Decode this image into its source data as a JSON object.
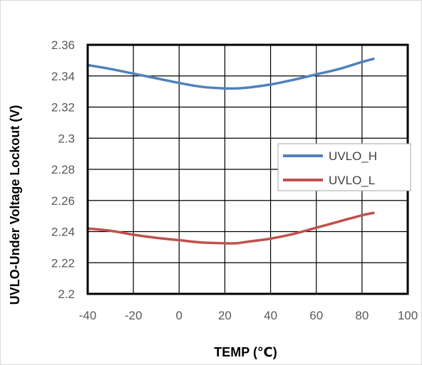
{
  "chart_data": {
    "type": "line",
    "title": "",
    "xlabel": "TEMP (℃)",
    "ylabel": "UVLO-Under Voltage Lockout (V)",
    "xlim": [
      -40,
      100
    ],
    "ylim": [
      2.2,
      2.36
    ],
    "xticks": [
      -40,
      -20,
      0,
      20,
      40,
      60,
      80,
      100
    ],
    "yticks": [
      2.2,
      2.22,
      2.24,
      2.26,
      2.28,
      2.3,
      2.32,
      2.34,
      2.36
    ],
    "xtick_labels": [
      "-40",
      "-20",
      "0",
      "20",
      "40",
      "60",
      "80",
      "100"
    ],
    "ytick_labels": [
      "2.2",
      "2.22",
      "2.24",
      "2.26",
      "2.28",
      "2.3",
      "2.32",
      "2.34",
      "2.36"
    ],
    "grid": true,
    "legend_position": "right-middle",
    "series": [
      {
        "name": "UVLO_H",
        "color": "#4F81BD",
        "x": [
          -40,
          -30,
          -20,
          -10,
          0,
          10,
          20,
          25,
          30,
          40,
          50,
          60,
          70,
          80,
          85
        ],
        "y": [
          2.347,
          2.3445,
          2.3415,
          2.3385,
          2.3355,
          2.333,
          2.332,
          2.332,
          2.3325,
          2.3345,
          2.3375,
          2.341,
          2.3445,
          2.349,
          2.351
        ]
      },
      {
        "name": "UVLO_L",
        "color": "#C0504D",
        "x": [
          -40,
          -30,
          -20,
          -10,
          0,
          10,
          20,
          25,
          30,
          40,
          50,
          60,
          70,
          80,
          85
        ],
        "y": [
          2.242,
          2.2405,
          2.238,
          2.236,
          2.2345,
          2.233,
          2.2325,
          2.2325,
          2.2335,
          2.2355,
          2.2385,
          2.2425,
          2.2465,
          2.2505,
          2.252
        ]
      }
    ]
  }
}
